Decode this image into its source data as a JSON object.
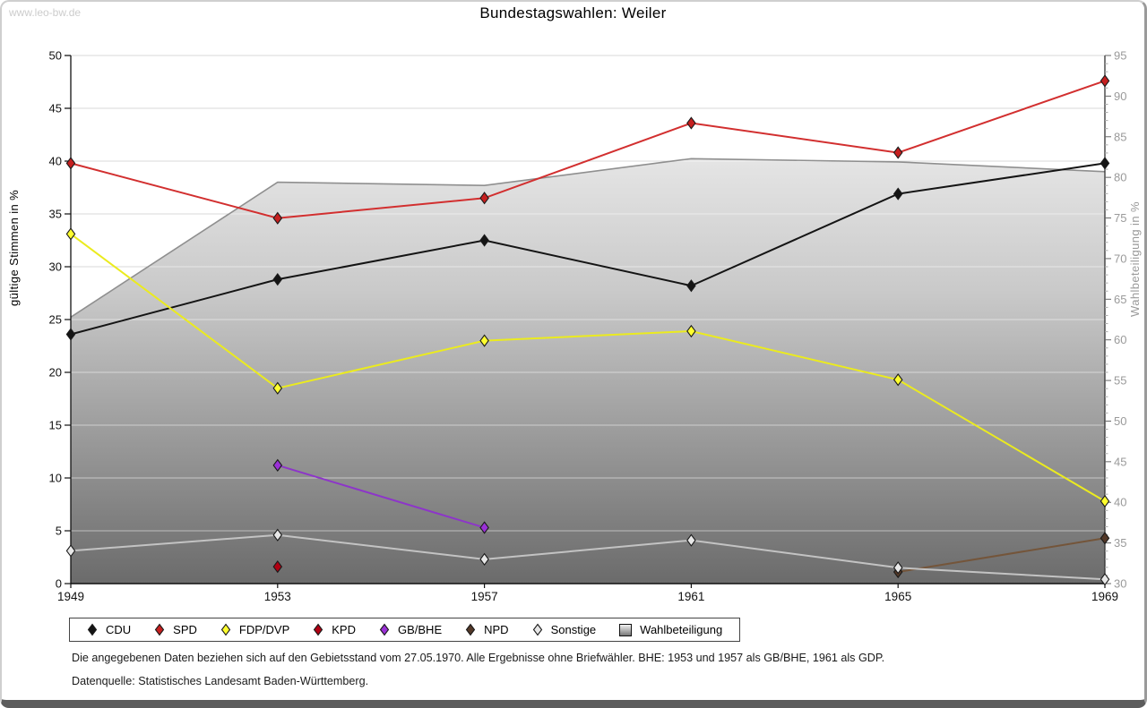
{
  "watermark": "www.leo-bw.de",
  "title": "Bundestagswahlen: Weiler",
  "footer": {
    "line1": "Die angegebenen Daten beziehen sich auf den Gebietsstand vom 27.05.1970. Alle Ergebnisse ohne Briefwähler. BHE: 1953 und 1957 als GB/BHE, 1961 als GDP.",
    "line2": "Datenquelle: Statistisches Landesamt Baden-Württemberg."
  },
  "chart_data": {
    "type": "line",
    "x": [
      1949,
      1953,
      1957,
      1961,
      1965,
      1969
    ],
    "xlabel": "",
    "grid": true,
    "legend_position": "bottom",
    "left_axis": {
      "label": "gültige Stimmen in %",
      "min": 0,
      "max": 50,
      "step": 5
    },
    "right_axis": {
      "label": "Wahlbeteiligung in %",
      "min": 30,
      "max": 95,
      "step": 5,
      "minor_step": 1
    },
    "series": [
      {
        "name": "CDU",
        "axis": "left",
        "style": "line",
        "line_color": "#141414",
        "marker_color": "#141414",
        "values": [
          23.6,
          28.8,
          32.5,
          28.2,
          36.9,
          39.8
        ]
      },
      {
        "name": "SPD",
        "axis": "left",
        "style": "line",
        "line_color": "#d22f2f",
        "marker_color": "#c51f1f",
        "values": [
          39.8,
          34.6,
          36.5,
          43.6,
          40.8,
          47.6
        ]
      },
      {
        "name": "FDP/DVP",
        "axis": "left",
        "style": "line",
        "line_color": "#ebeb1e",
        "marker_color": "#ffff2e",
        "values": [
          33.1,
          18.5,
          23.0,
          23.9,
          19.3,
          7.8
        ]
      },
      {
        "name": "KPD",
        "axis": "left",
        "style": "line",
        "line_color": "#a30010",
        "marker_color": "#b00012",
        "values": [
          null,
          1.6,
          null,
          null,
          null,
          null
        ]
      },
      {
        "name": "GB/BHE",
        "axis": "left",
        "style": "line",
        "line_color": "#8d35c9",
        "marker_color": "#9a30d6",
        "values": [
          null,
          11.2,
          5.3,
          null,
          null,
          null
        ]
      },
      {
        "name": "NPD",
        "axis": "left",
        "style": "line",
        "line_color": "#74553a",
        "marker_color": "#533828",
        "values": [
          null,
          null,
          null,
          null,
          1.1,
          4.3
        ]
      },
      {
        "name": "Sonstige",
        "axis": "left",
        "style": "line",
        "line_color": "#c3c3c3",
        "marker_color": "#e8e8e8",
        "values": [
          3.1,
          4.6,
          2.3,
          4.1,
          1.5,
          0.4
        ]
      },
      {
        "name": "Wahlbeteiligung",
        "axis": "right",
        "style": "area",
        "line_color": "#8f8f8f",
        "marker_color": "#bbbbbb",
        "values": [
          62.8,
          79.4,
          79.0,
          82.3,
          81.9,
          80.7
        ]
      }
    ]
  }
}
